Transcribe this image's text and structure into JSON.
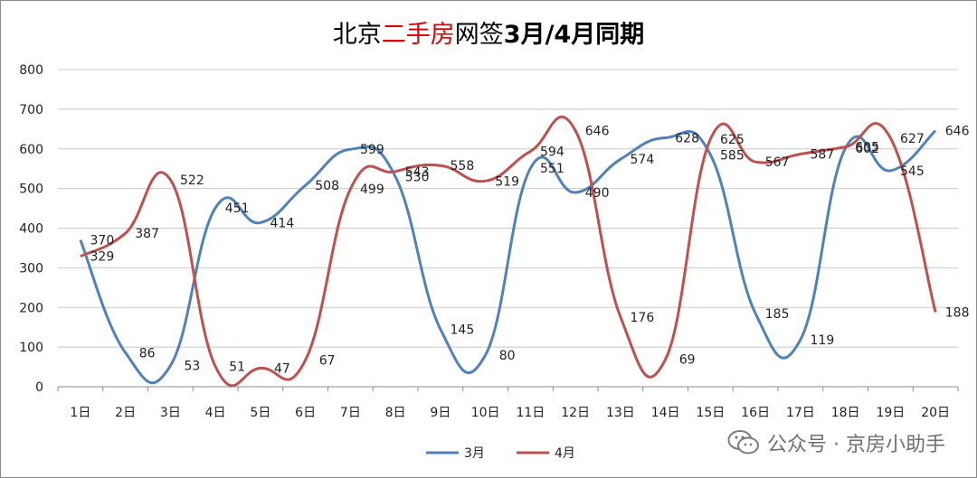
{
  "chart_data": {
    "type": "line",
    "title_parts": [
      {
        "text": "北京",
        "color": "#000000"
      },
      {
        "text": "二手房",
        "color": "#e00000"
      },
      {
        "text": "网签",
        "color": "#000000"
      },
      {
        "text": "3月/4月同期",
        "color": "#000000",
        "bold": true
      }
    ],
    "categories": [
      "1日",
      "2日",
      "3日",
      "4日",
      "5日",
      "6日",
      "7日",
      "8日",
      "9日",
      "10日",
      "11日",
      "12日",
      "13日",
      "14日",
      "15日",
      "16日",
      "17日",
      "18日",
      "19日",
      "20日"
    ],
    "ylim": [
      0,
      800
    ],
    "yticks": [
      "0",
      "100",
      "200",
      "300",
      "400",
      "500",
      "600",
      "700",
      "800"
    ],
    "ytick_values": [
      0,
      100,
      200,
      300,
      400,
      500,
      600,
      700,
      800
    ],
    "grid": true,
    "legend_position": "bottom-center",
    "series": [
      {
        "name": "3月",
        "color": "#4f81bd",
        "values": [
          370,
          86,
          53,
          451,
          414,
          508,
          599,
          530,
          145,
          80,
          551,
          490,
          574,
          628,
          585,
          185,
          119,
          602,
          545,
          646
        ]
      },
      {
        "name": "4月",
        "color": "#c0504d",
        "values": [
          329,
          387,
          522,
          51,
          47,
          67,
          499,
          543,
          558,
          519,
          594,
          646,
          176,
          69,
          625,
          567,
          587,
          605,
          627,
          188
        ]
      }
    ],
    "data_labels": [
      [
        "370",
        "86",
        "53",
        "451",
        "414",
        "508",
        "599",
        "530",
        "145",
        "80",
        "551",
        "490",
        "574",
        "628",
        "585",
        "185",
        "119",
        "602",
        "545",
        "646"
      ],
      [
        "329",
        "387",
        "522",
        "51",
        "47",
        "67",
        "499",
        "543",
        "558",
        "519",
        "594",
        "646",
        "176",
        "69",
        "625",
        "567",
        "587",
        "605",
        "627",
        "188"
      ]
    ]
  },
  "watermark": {
    "text": "公众号 · 京房小助手",
    "icon": "wechat-icon"
  }
}
